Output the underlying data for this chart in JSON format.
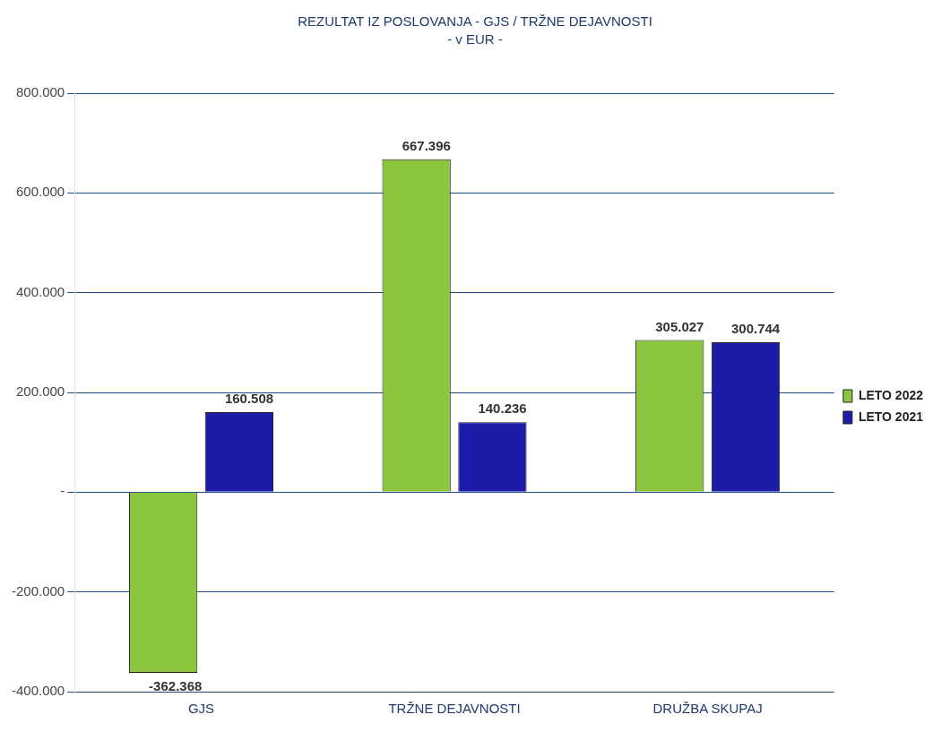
{
  "chart_data": {
    "type": "bar",
    "title": "REZULTAT IZ POSLOVANJA - GJS / TRŽNE DEJAVNOSTI",
    "subtitle": "- v  EUR -",
    "categories": [
      "GJS",
      "TRŽNE DEJAVNOSTI",
      "DRUŽBA SKUPAJ"
    ],
    "series": [
      {
        "name": "LETO 2022",
        "color": "#8cc63e",
        "values": [
          -362368,
          667396,
          305027
        ],
        "value_labels": [
          "-362.368",
          "667.396",
          "305.027"
        ]
      },
      {
        "name": "LETO 2021",
        "color": "#1c1ca8",
        "values": [
          160508,
          140236,
          300744
        ],
        "value_labels": [
          "160.508",
          "140.236",
          "300.744"
        ]
      }
    ],
    "ylim": [
      -400000,
      800000
    ],
    "yticks": [
      {
        "value": -400000,
        "label": "-400.000"
      },
      {
        "value": -200000,
        "label": "-200.000"
      },
      {
        "value": 0,
        "label": "-"
      },
      {
        "value": 200000,
        "label": "200.000"
      },
      {
        "value": 400000,
        "label": "400.000"
      },
      {
        "value": 600000,
        "label": "600.000"
      },
      {
        "value": 800000,
        "label": "800.000"
      }
    ],
    "grid": "y",
    "legend": "right"
  }
}
